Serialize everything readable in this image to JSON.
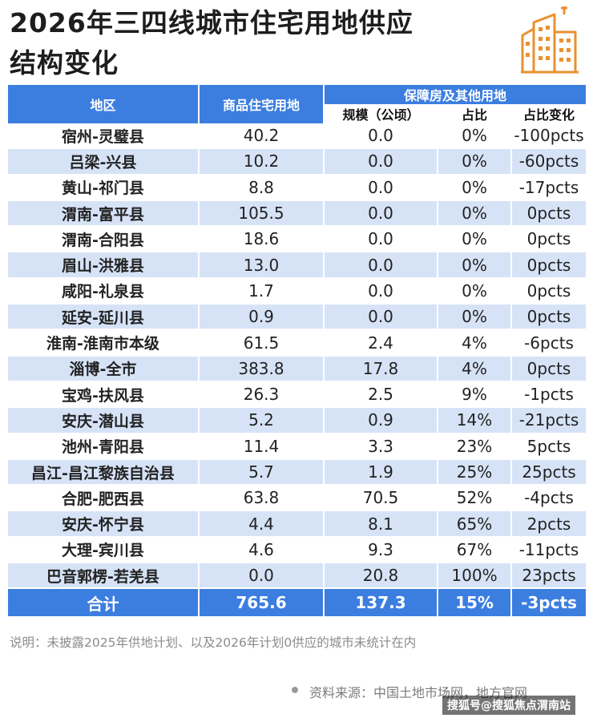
{
  "title": {
    "line1": "2026年三四线城市住宅用地供应",
    "line2": "结构变化"
  },
  "icon": "building-icon",
  "table": {
    "headers": {
      "region": "地区",
      "commercial": "商品住宅用地",
      "affordable_group": "保障房及其他用地",
      "scale": "规模（公顷）",
      "share": "占比",
      "share_change": "占比变化"
    },
    "rows": [
      {
        "region": "宿州-灵璧县",
        "commercial": "40.2",
        "scale": "0.0",
        "share": "0%",
        "change": "-100pcts"
      },
      {
        "region": "吕梁-兴县",
        "commercial": "10.2",
        "scale": "0.0",
        "share": "0%",
        "change": "-60pcts"
      },
      {
        "region": "黄山-祁门县",
        "commercial": "8.8",
        "scale": "0.0",
        "share": "0%",
        "change": "-17pcts"
      },
      {
        "region": "渭南-富平县",
        "commercial": "105.5",
        "scale": "0.0",
        "share": "0%",
        "change": "0pcts"
      },
      {
        "region": "渭南-合阳县",
        "commercial": "18.6",
        "scale": "0.0",
        "share": "0%",
        "change": "0pcts"
      },
      {
        "region": "眉山-洪雅县",
        "commercial": "13.0",
        "scale": "0.0",
        "share": "0%",
        "change": "0pcts"
      },
      {
        "region": "咸阳-礼泉县",
        "commercial": "1.7",
        "scale": "0.0",
        "share": "0%",
        "change": "0pcts"
      },
      {
        "region": "延安-延川县",
        "commercial": "0.9",
        "scale": "0.0",
        "share": "0%",
        "change": "0pcts"
      },
      {
        "region": "淮南-淮南市本级",
        "commercial": "61.5",
        "scale": "2.4",
        "share": "4%",
        "change": "-6pcts"
      },
      {
        "region": "淄博-全市",
        "commercial": "383.8",
        "scale": "17.8",
        "share": "4%",
        "change": "0pcts"
      },
      {
        "region": "宝鸡-扶风县",
        "commercial": "26.3",
        "scale": "2.5",
        "share": "9%",
        "change": "-1pcts"
      },
      {
        "region": "安庆-潜山县",
        "commercial": "5.2",
        "scale": "0.9",
        "share": "14%",
        "change": "-21pcts"
      },
      {
        "region": "池州-青阳县",
        "commercial": "11.4",
        "scale": "3.3",
        "share": "23%",
        "change": "5pcts"
      },
      {
        "region": "昌江-昌江黎族自治县",
        "commercial": "5.7",
        "scale": "1.9",
        "share": "25%",
        "change": "25pcts"
      },
      {
        "region": "合肥-肥西县",
        "commercial": "63.8",
        "scale": "70.5",
        "share": "52%",
        "change": "-4pcts"
      },
      {
        "region": "安庆-怀宁县",
        "commercial": "4.4",
        "scale": "8.1",
        "share": "65%",
        "change": "2pcts"
      },
      {
        "region": "大理-宾川县",
        "commercial": "4.6",
        "scale": "9.3",
        "share": "67%",
        "change": "-11pcts"
      },
      {
        "region": "巴音郭楞-若羌县",
        "commercial": "0.0",
        "scale": "20.8",
        "share": "100%",
        "change": "23pcts"
      }
    ],
    "total": {
      "label": "合计",
      "commercial": "765.6",
      "scale": "137.3",
      "share": "15%",
      "change": "-3pcts"
    }
  },
  "note": "说明：未披露2025年供地计划、以及2026年计划0供应的城市未统计在内",
  "source": "资料来源：中国土地市场网，地方官网",
  "watermark": "搜狐号@搜狐焦点渭南站",
  "colors": {
    "header_blue": "#3b7ee0",
    "stripe_blue": "#d6e3f7",
    "icon_orange": "#e8912f"
  }
}
